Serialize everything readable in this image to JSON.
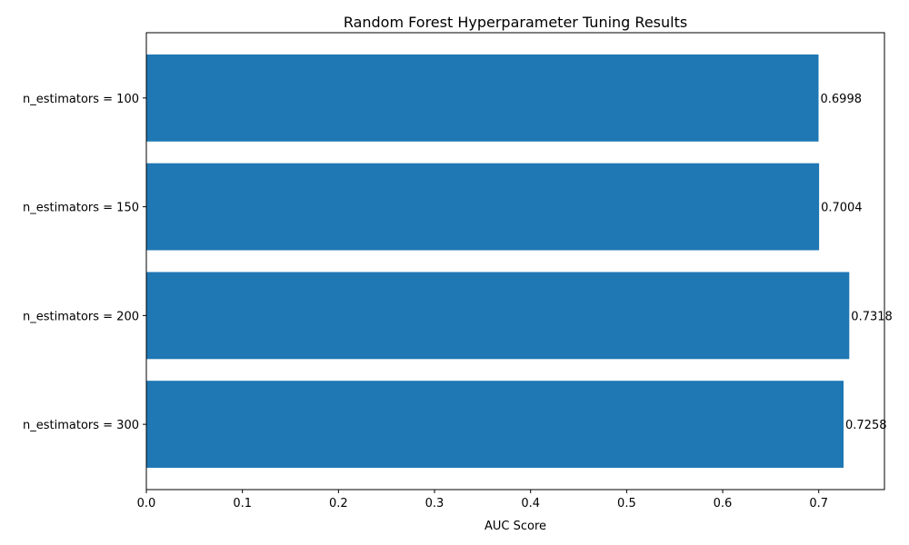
{
  "chart_data": {
    "type": "bar",
    "orientation": "horizontal",
    "title": "Random Forest Hyperparameter Tuning Results",
    "xlabel": "AUC Score",
    "ylabel": "",
    "categories": [
      "n_estimators = 100",
      "n_estimators = 150",
      "n_estimators = 200",
      "n_estimators = 300"
    ],
    "values": [
      0.6998,
      0.7004,
      0.7318,
      0.7258
    ],
    "value_labels": [
      "0.6998",
      "0.7004",
      "0.7318",
      "0.7258"
    ],
    "xlim": [
      0,
      0.7684
    ],
    "xticks": [
      "0.0",
      "0.1",
      "0.2",
      "0.3",
      "0.4",
      "0.5",
      "0.6",
      "0.7"
    ],
    "grid": false,
    "legend": "none",
    "bar_color": "#1f77b4"
  }
}
